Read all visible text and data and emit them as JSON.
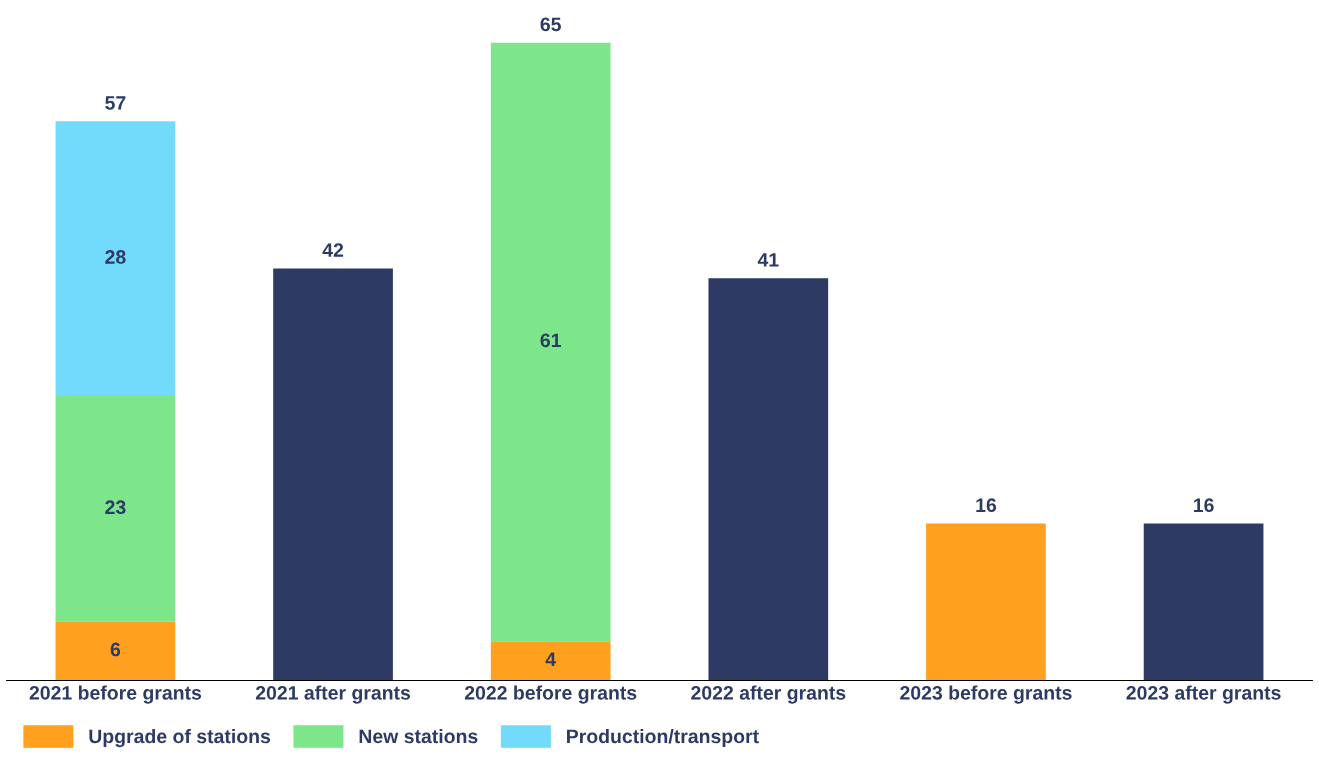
{
  "chart_data": {
    "type": "bar",
    "stacked": true,
    "categories": [
      "2021 before grants",
      "2021 after grants",
      "2022 before grants",
      "2022 after grants",
      "2023 before grants",
      "2023 after grants"
    ],
    "series": [
      {
        "name": "Upgrade of stations",
        "color": "#ffa01e",
        "values": [
          6,
          null,
          4,
          null,
          16,
          null
        ],
        "value_labels": [
          "6",
          null,
          "4",
          null,
          null,
          null
        ]
      },
      {
        "name": "New stations",
        "color": "#7de68a",
        "values": [
          23,
          null,
          61,
          null,
          null,
          null
        ],
        "value_labels": [
          "23",
          null,
          "61",
          null,
          null,
          null
        ]
      },
      {
        "name": "Production/transport",
        "color": "#72dbfc",
        "values": [
          28,
          null,
          null,
          null,
          null,
          null
        ],
        "value_labels": [
          "28",
          null,
          null,
          null,
          null,
          null
        ]
      },
      {
        "color": "#2d3a64",
        "values": [
          null,
          42,
          null,
          41,
          null,
          16
        ]
      }
    ],
    "totals": [
      "57",
      "42",
      "65",
      "41",
      "16",
      "16"
    ],
    "tick_labels": "x",
    "grid": false,
    "legend": "bottom"
  }
}
